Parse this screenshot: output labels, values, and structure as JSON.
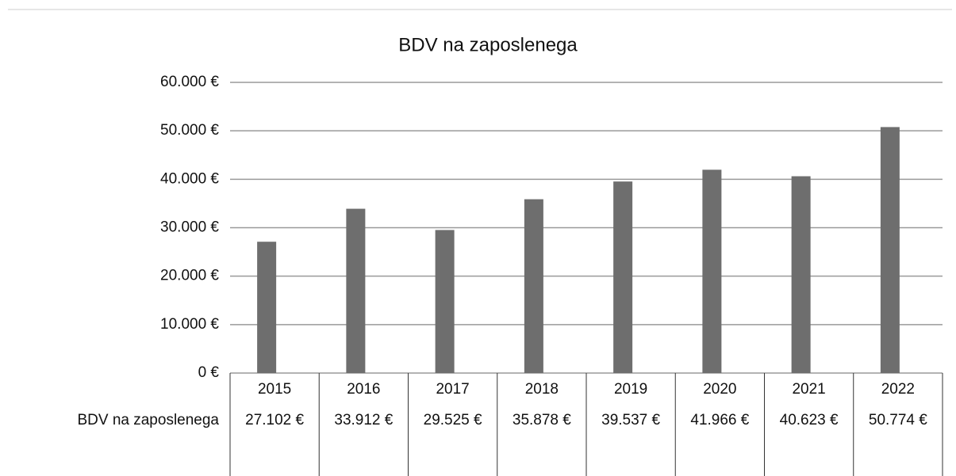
{
  "chart_data": {
    "type": "bar",
    "title": "BDV na zaposlenega",
    "categories": [
      "2015",
      "2016",
      "2017",
      "2018",
      "2019",
      "2020",
      "2021",
      "2022"
    ],
    "series": [
      {
        "name": "BDV na zaposlenega",
        "color": "#6e6e6e",
        "values": [
          27102,
          33912,
          29525,
          35878,
          39537,
          41966,
          40623,
          50774
        ],
        "value_labels": [
          "27.102 €",
          "33.912 €",
          "29.525 €",
          "35.878 €",
          "39.537 €",
          "41.966 €",
          "40.623 €",
          "50.774 €"
        ]
      }
    ],
    "ylim": [
      0,
      60000
    ],
    "yticks": [
      {
        "value": 0,
        "label": "0 €"
      },
      {
        "value": 10000,
        "label": "10.000 €"
      },
      {
        "value": 20000,
        "label": "20.000 €"
      },
      {
        "value": 30000,
        "label": "30.000 €"
      },
      {
        "value": 40000,
        "label": "40.000 €"
      },
      {
        "value": 50000,
        "label": "50.000 €"
      },
      {
        "value": 60000,
        "label": "60.000 €"
      }
    ],
    "grid": true
  }
}
